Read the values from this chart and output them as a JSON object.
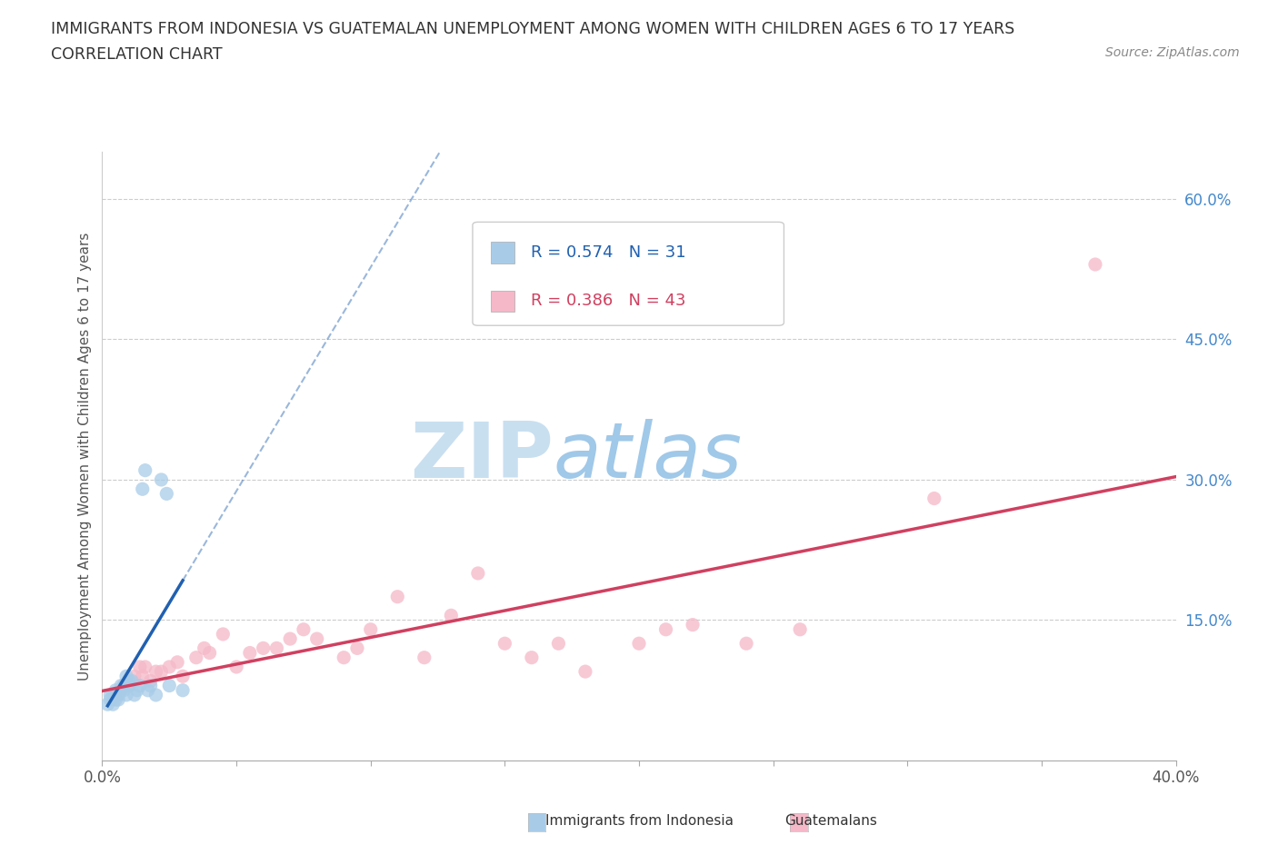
{
  "title_line1": "IMMIGRANTS FROM INDONESIA VS GUATEMALAN UNEMPLOYMENT AMONG WOMEN WITH CHILDREN AGES 6 TO 17 YEARS",
  "title_line2": "CORRELATION CHART",
  "source": "Source: ZipAtlas.com",
  "ylabel": "Unemployment Among Women with Children Ages 6 to 17 years",
  "xlim": [
    0.0,
    0.4
  ],
  "ylim": [
    0.0,
    0.65
  ],
  "xticks": [
    0.0,
    0.05,
    0.1,
    0.15,
    0.2,
    0.25,
    0.3,
    0.35,
    0.4
  ],
  "xtick_labels": [
    "0.0%",
    "",
    "",
    "",
    "",
    "",
    "",
    "",
    "40.0%"
  ],
  "ytick_right": [
    0.15,
    0.3,
    0.45,
    0.6
  ],
  "ytick_right_labels": [
    "15.0%",
    "30.0%",
    "45.0%",
    "60.0%"
  ],
  "legend_blue_R": "0.574",
  "legend_blue_N": "31",
  "legend_pink_R": "0.386",
  "legend_pink_N": "43",
  "legend_label_blue": "Immigrants from Indonesia",
  "legend_label_pink": "Guatemalans",
  "blue_color": "#a8cce8",
  "pink_color": "#f5b8c8",
  "blue_line_color": "#2060b0",
  "pink_line_color": "#d04060",
  "watermark_zip_color": "#c8dff0",
  "watermark_atlas_color": "#a0c8e8",
  "blue_x": [
    0.002,
    0.003,
    0.003,
    0.004,
    0.004,
    0.005,
    0.005,
    0.005,
    0.006,
    0.006,
    0.007,
    0.007,
    0.008,
    0.008,
    0.009,
    0.009,
    0.01,
    0.01,
    0.011,
    0.012,
    0.013,
    0.014,
    0.015,
    0.016,
    0.017,
    0.018,
    0.02,
    0.022,
    0.024,
    0.025,
    0.03
  ],
  "blue_y": [
    0.06,
    0.065,
    0.07,
    0.06,
    0.07,
    0.065,
    0.075,
    0.07,
    0.065,
    0.07,
    0.075,
    0.08,
    0.075,
    0.08,
    0.07,
    0.09,
    0.08,
    0.085,
    0.085,
    0.07,
    0.075,
    0.08,
    0.29,
    0.31,
    0.075,
    0.08,
    0.07,
    0.3,
    0.285,
    0.08,
    0.075
  ],
  "pink_x": [
    0.005,
    0.007,
    0.008,
    0.01,
    0.012,
    0.014,
    0.015,
    0.016,
    0.018,
    0.02,
    0.022,
    0.025,
    0.028,
    0.03,
    0.035,
    0.038,
    0.04,
    0.045,
    0.05,
    0.055,
    0.06,
    0.065,
    0.07,
    0.075,
    0.08,
    0.09,
    0.095,
    0.1,
    0.11,
    0.12,
    0.13,
    0.14,
    0.15,
    0.16,
    0.17,
    0.18,
    0.2,
    0.21,
    0.22,
    0.24,
    0.26,
    0.31,
    0.37
  ],
  "pink_y": [
    0.07,
    0.075,
    0.08,
    0.08,
    0.09,
    0.1,
    0.09,
    0.1,
    0.085,
    0.095,
    0.095,
    0.1,
    0.105,
    0.09,
    0.11,
    0.12,
    0.115,
    0.135,
    0.1,
    0.115,
    0.12,
    0.12,
    0.13,
    0.14,
    0.13,
    0.11,
    0.12,
    0.14,
    0.175,
    0.11,
    0.155,
    0.2,
    0.125,
    0.11,
    0.125,
    0.095,
    0.125,
    0.14,
    0.145,
    0.125,
    0.14,
    0.28,
    0.53
  ]
}
